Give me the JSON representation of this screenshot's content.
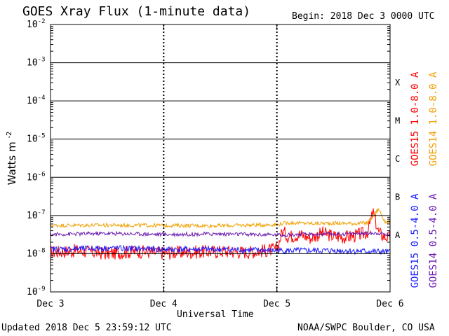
{
  "header": {
    "title": "GOES Xray Flux (1-minute data)",
    "begin": "Begin:  2018 Dec 3 0000 UTC"
  },
  "footer": {
    "updated": "Updated 2018 Dec  5 23:59:12 UTC",
    "credit": "NOAA/SWPC Boulder, CO USA"
  },
  "colors": {
    "goes15_long": "#ff0000",
    "goes14_long": "#f0a000",
    "goes15_short": "#1c1cff",
    "goes14_short": "#6a1ab0"
  },
  "chart_data": {
    "type": "line",
    "xlabel": "Universal Time",
    "ylabel_base": "Watts m",
    "ylabel_exp": "-2",
    "yscale": "log",
    "ylim": [
      1e-09,
      0.01
    ],
    "x_ticks": [
      "Dec 3",
      "Dec 4",
      "Dec 5",
      "Dec 6"
    ],
    "xlim_days": [
      0,
      3
    ],
    "y_ticks": [
      {
        "base": "10",
        "exp": "-2",
        "value": 0.01
      },
      {
        "base": "10",
        "exp": "-3",
        "value": 0.001
      },
      {
        "base": "10",
        "exp": "-4",
        "value": 0.0001
      },
      {
        "base": "10",
        "exp": "-5",
        "value": 1e-05
      },
      {
        "base": "10",
        "exp": "-6",
        "value": 1e-06
      },
      {
        "base": "10",
        "exp": "-7",
        "value": 1e-07
      },
      {
        "base": "10",
        "exp": "-8",
        "value": 1e-08
      },
      {
        "base": "10",
        "exp": "-9",
        "value": 1e-09
      }
    ],
    "flare_classes": [
      {
        "label": "X",
        "from": 0.0001,
        "to": 0.001
      },
      {
        "label": "M",
        "from": 1e-05,
        "to": 0.0001
      },
      {
        "label": "C",
        "from": 1e-06,
        "to": 1e-05
      },
      {
        "label": "B",
        "from": 1e-07,
        "to": 1e-06
      },
      {
        "label": "A",
        "from": 1e-08,
        "to": 1e-07
      }
    ],
    "series": [
      {
        "name": "GOES15 1.0-8.0 A",
        "color": "#ff0000",
        "x": [
          0,
          0.25,
          0.5,
          0.75,
          1.0,
          1.25,
          1.5,
          1.75,
          2.0,
          2.05,
          2.1,
          2.2,
          2.3,
          2.4,
          2.5,
          2.6,
          2.7,
          2.8,
          2.85,
          2.9,
          2.95,
          3.0
        ],
        "y": [
          1.1e-08,
          1.2e-08,
          1e-08,
          1.15e-08,
          1.05e-08,
          1.1e-08,
          1.15e-08,
          1.1e-08,
          1.3e-08,
          4e-08,
          2.8e-08,
          3.2e-08,
          2.6e-08,
          3.5e-08,
          2.9e-08,
          2.7e-08,
          3e-08,
          3.6e-08,
          1.2e-07,
          3.5e-08,
          2.8e-08,
          2.6e-08
        ]
      },
      {
        "name": "GOES14 1.0-8.0 A",
        "color": "#f0a000",
        "x": [
          0,
          0.5,
          1.0,
          1.5,
          2.0,
          2.1,
          2.3,
          2.5,
          2.7,
          2.8,
          2.9,
          2.95,
          3.0
        ],
        "y": [
          5.5e-08,
          5.6e-08,
          5.5e-08,
          5.4e-08,
          5.8e-08,
          6.5e-08,
          6.2e-08,
          6.3e-08,
          6.2e-08,
          6.4e-08,
          1.5e-07,
          7e-08,
          6.5e-08
        ]
      },
      {
        "name": "GOES15 0.5-4.0 A",
        "color": "#1c1cff",
        "x": [
          0,
          0.5,
          1.0,
          1.5,
          2.0,
          2.3,
          2.6,
          3.0
        ],
        "y": [
          1.3e-08,
          1.4e-08,
          1.3e-08,
          1.3e-08,
          1.2e-08,
          1.2e-08,
          1.2e-08,
          1.1e-08
        ]
      },
      {
        "name": "GOES14 0.5-4.0 A",
        "color": "#6a1ab0",
        "x": [
          0,
          0.5,
          1.0,
          1.5,
          2.0,
          2.3,
          2.6,
          2.9,
          3.0
        ],
        "y": [
          3.2e-08,
          3.4e-08,
          3.2e-08,
          3.3e-08,
          3.1e-08,
          3.2e-08,
          3.3e-08,
          3.5e-08,
          3e-08
        ]
      }
    ]
  }
}
